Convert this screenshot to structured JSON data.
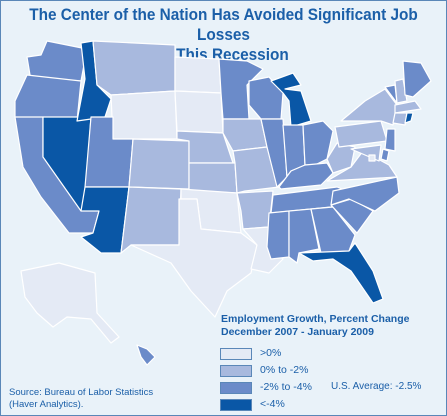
{
  "title_line1": "The Center of the Nation Has Avoided Significant Job Losses",
  "title_line2": "in This Recession",
  "colors": {
    "band_gt0": "#e4eaf5",
    "band_0_to_neg2": "#a8b9de",
    "band_neg2_to_neg4": "#6b8bc9",
    "band_lt_neg4": "#0a57a6",
    "text_blue": "#1b5fa8",
    "background": "#e9f2f9",
    "state_border": "#ffffff"
  },
  "legend": {
    "title_line1": "Employment Growth, Percent Change",
    "title_line2": "December 2007 - January 2009",
    "items": [
      {
        "label": ">0%",
        "color_key": "band_gt0"
      },
      {
        "label": "0% to -2%",
        "color_key": "band_0_to_neg2"
      },
      {
        "label": "-2% to -4%",
        "color_key": "band_neg2_to_neg4"
      },
      {
        "label": "<-4%",
        "color_key": "band_lt_neg4"
      }
    ]
  },
  "us_average": "U.S. Average: -2.5%",
  "source_line1": "Source: Bureau of Labor Statistics",
  "source_line2": "(Haver Analytics).",
  "state_bands": {
    "WA": "band_neg2_to_neg4",
    "OR": "band_neg2_to_neg4",
    "CA": "band_neg2_to_neg4",
    "NV": "band_lt_neg4",
    "ID": "band_lt_neg4",
    "AZ": "band_lt_neg4",
    "UT": "band_neg2_to_neg4",
    "MT": "band_0_to_neg2",
    "WY": "band_gt0",
    "CO": "band_0_to_neg2",
    "NM": "band_0_to_neg2",
    "ND": "band_gt0",
    "SD": "band_gt0",
    "NE": "band_0_to_neg2",
    "KS": "band_0_to_neg2",
    "OK": "band_gt0",
    "TX": "band_gt0",
    "MN": "band_neg2_to_neg4",
    "IA": "band_0_to_neg2",
    "MO": "band_0_to_neg2",
    "AR": "band_0_to_neg2",
    "LA": "band_gt0",
    "WI": "band_neg2_to_neg4",
    "IL": "band_neg2_to_neg4",
    "MI": "band_lt_neg4",
    "IN": "band_neg2_to_neg4",
    "OH": "band_neg2_to_neg4",
    "KY": "band_neg2_to_neg4",
    "TN": "band_neg2_to_neg4",
    "MS": "band_neg2_to_neg4",
    "AL": "band_neg2_to_neg4",
    "GA": "band_neg2_to_neg4",
    "FL": "band_lt_neg4",
    "SC": "band_neg2_to_neg4",
    "NC": "band_neg2_to_neg4",
    "VA": "band_0_to_neg2",
    "WV": "band_0_to_neg2",
    "PA": "band_0_to_neg2",
    "NY": "band_0_to_neg2",
    "VT": "band_neg2_to_neg4",
    "NH": "band_0_to_neg2",
    "ME": "band_neg2_to_neg4",
    "MA": "band_0_to_neg2",
    "CT": "band_0_to_neg2",
    "RI": "band_lt_neg4",
    "NJ": "band_neg2_to_neg4",
    "DE": "band_neg2_to_neg4",
    "MD": "band_0_to_neg2",
    "DC": "band_gt0",
    "AK": "band_gt0",
    "HI": "band_neg2_to_neg4"
  }
}
